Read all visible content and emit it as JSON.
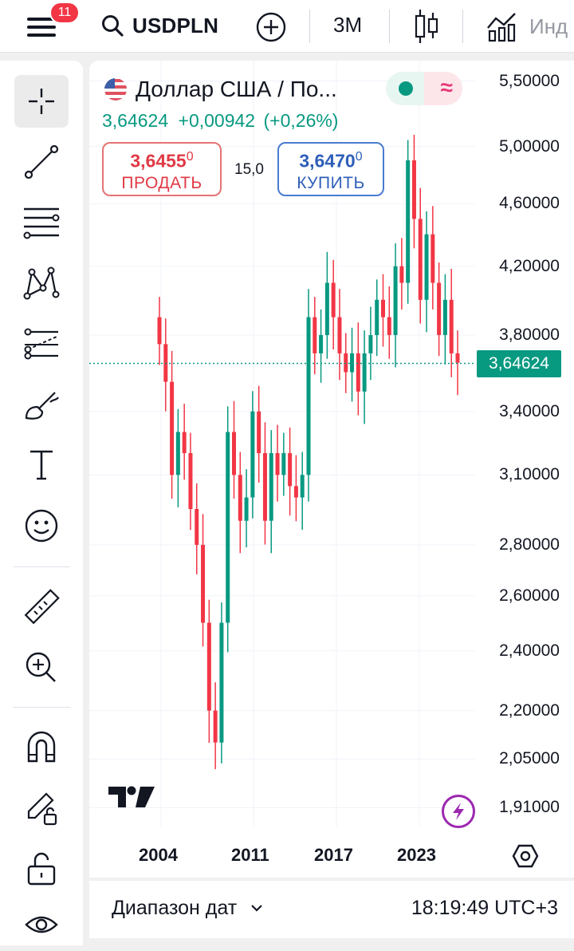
{
  "header": {
    "notifications_count": "11",
    "symbol": "USDPLN",
    "interval": "3M",
    "indicators_label": "Инд"
  },
  "legend": {
    "title": "Доллар США / По...",
    "last_price": "3,64624",
    "change_abs": "+0,00942",
    "change_pct": "(+0,26%)",
    "sell": {
      "price_main": "3,6455",
      "price_sup": "0",
      "label": "ПРОДАТЬ"
    },
    "buy": {
      "price_main": "3,6470",
      "price_sup": "0",
      "label": "КУПИТЬ"
    },
    "spread": "15,0"
  },
  "price_axis": {
    "labels": [
      "5,50000",
      "5,00000",
      "4,60000",
      "4,20000",
      "3,80000",
      "3,40000",
      "3,10000",
      "2,80000",
      "2,60000",
      "2,40000",
      "2,20000",
      "2,05000",
      "1,91000"
    ],
    "current": "3,64624"
  },
  "time_axis": {
    "labels": [
      "2004",
      "2011",
      "2017",
      "2023"
    ]
  },
  "bottom": {
    "range_label": "Диапазон дат",
    "clock": "18:19:49 UTC+3"
  },
  "colors": {
    "up": "#089981",
    "down": "#f23645",
    "accent": "#2962ff"
  },
  "chart_data": {
    "type": "candlestick",
    "scale": "log",
    "ylim": [
      1.88,
      5.6
    ],
    "x_ticks": [
      "2004",
      "2011",
      "2017",
      "2023"
    ],
    "last_value": 3.64624,
    "approx_close_series": [
      3.75,
      3.55,
      3.1,
      3.3,
      3.2,
      2.95,
      2.8,
      2.5,
      2.2,
      2.1,
      2.5,
      3.3,
      3.1,
      2.9,
      3.0,
      3.4,
      3.2,
      2.9,
      3.2,
      3.1,
      3.2,
      3.05,
      3.0,
      3.1,
      3.9,
      3.7,
      3.8,
      4.1,
      3.9,
      3.7,
      3.6,
      3.7,
      3.5,
      3.7,
      3.8,
      4.0,
      3.9,
      3.8,
      4.2,
      4.1,
      4.9,
      4.5,
      4.0,
      4.4,
      4.1,
      3.8,
      4.0,
      3.7,
      3.65
    ]
  }
}
